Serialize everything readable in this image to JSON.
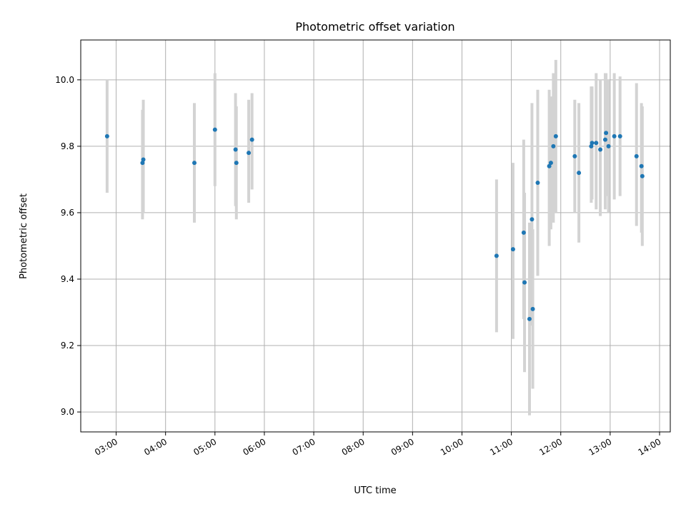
{
  "chart_data": {
    "type": "scatter",
    "title": "Photometric offset variation",
    "xlabel": "UTC time",
    "ylabel": "Photometric offset",
    "x_unit": "UTC hours",
    "xlim": [
      "02:17",
      "14:13"
    ],
    "ylim": [
      8.94,
      10.12
    ],
    "grid": true,
    "x_ticks": [
      "03:00",
      "04:00",
      "05:00",
      "06:00",
      "07:00",
      "08:00",
      "09:00",
      "10:00",
      "11:00",
      "12:00",
      "13:00",
      "14:00"
    ],
    "y_ticks": [
      "9.0",
      "9.2",
      "9.4",
      "9.6",
      "9.8",
      "10.0"
    ],
    "marker_color": "#1f77b4",
    "errorbar_color": "#d3d3d3",
    "points": [
      {
        "x": "02:49",
        "y": 9.83,
        "lo": 9.66,
        "hi": 10.0
      },
      {
        "x": "03:32",
        "y": 9.75,
        "lo": 9.58,
        "hi": 9.91
      },
      {
        "x": "03:33",
        "y": 9.76,
        "lo": 9.6,
        "hi": 9.94
      },
      {
        "x": "04:35",
        "y": 9.75,
        "lo": 9.57,
        "hi": 9.93
      },
      {
        "x": "05:00",
        "y": 9.85,
        "lo": 9.68,
        "hi": 10.02
      },
      {
        "x": "05:25",
        "y": 9.79,
        "lo": 9.62,
        "hi": 9.96
      },
      {
        "x": "05:26",
        "y": 9.75,
        "lo": 9.58,
        "hi": 9.92
      },
      {
        "x": "05:41",
        "y": 9.78,
        "lo": 9.63,
        "hi": 9.94
      },
      {
        "x": "05:45",
        "y": 9.82,
        "lo": 9.67,
        "hi": 9.96
      },
      {
        "x": "10:42",
        "y": 9.47,
        "lo": 9.24,
        "hi": 9.7
      },
      {
        "x": "11:02",
        "y": 9.49,
        "lo": 9.22,
        "hi": 9.75
      },
      {
        "x": "11:15",
        "y": 9.54,
        "lo": 9.28,
        "hi": 9.82
      },
      {
        "x": "11:16",
        "y": 9.39,
        "lo": 9.12,
        "hi": 9.66
      },
      {
        "x": "11:22",
        "y": 9.28,
        "lo": 8.99,
        "hi": 9.57
      },
      {
        "x": "11:25",
        "y": 9.58,
        "lo": 9.26,
        "hi": 9.93
      },
      {
        "x": "11:26",
        "y": 9.31,
        "lo": 9.07,
        "hi": 9.55
      },
      {
        "x": "11:32",
        "y": 9.69,
        "lo": 9.41,
        "hi": 9.97
      },
      {
        "x": "11:46",
        "y": 9.74,
        "lo": 9.5,
        "hi": 9.97
      },
      {
        "x": "11:48",
        "y": 9.75,
        "lo": 9.55,
        "hi": 9.95
      },
      {
        "x": "11:51",
        "y": 9.8,
        "lo": 9.57,
        "hi": 10.02
      },
      {
        "x": "11:54",
        "y": 9.83,
        "lo": 9.6,
        "hi": 10.06
      },
      {
        "x": "12:17",
        "y": 9.77,
        "lo": 9.6,
        "hi": 9.94
      },
      {
        "x": "12:22",
        "y": 9.72,
        "lo": 9.51,
        "hi": 9.93
      },
      {
        "x": "12:37",
        "y": 9.8,
        "lo": 9.63,
        "hi": 9.98
      },
      {
        "x": "12:38",
        "y": 9.81,
        "lo": 9.64,
        "hi": 9.98
      },
      {
        "x": "12:43",
        "y": 9.81,
        "lo": 9.61,
        "hi": 10.02
      },
      {
        "x": "12:48",
        "y": 9.79,
        "lo": 9.59,
        "hi": 10.0
      },
      {
        "x": "12:54",
        "y": 9.82,
        "lo": 9.61,
        "hi": 10.02
      },
      {
        "x": "12:55",
        "y": 9.84,
        "lo": 9.65,
        "hi": 10.02
      },
      {
        "x": "12:58",
        "y": 9.8,
        "lo": 9.6,
        "hi": 10.0
      },
      {
        "x": "13:05",
        "y": 9.83,
        "lo": 9.64,
        "hi": 10.02
      },
      {
        "x": "13:12",
        "y": 9.83,
        "lo": 9.65,
        "hi": 10.01
      },
      {
        "x": "13:32",
        "y": 9.77,
        "lo": 9.56,
        "hi": 9.99
      },
      {
        "x": "13:38",
        "y": 9.74,
        "lo": 9.54,
        "hi": 9.93
      },
      {
        "x": "13:39",
        "y": 9.71,
        "lo": 9.5,
        "hi": 9.92
      }
    ]
  }
}
